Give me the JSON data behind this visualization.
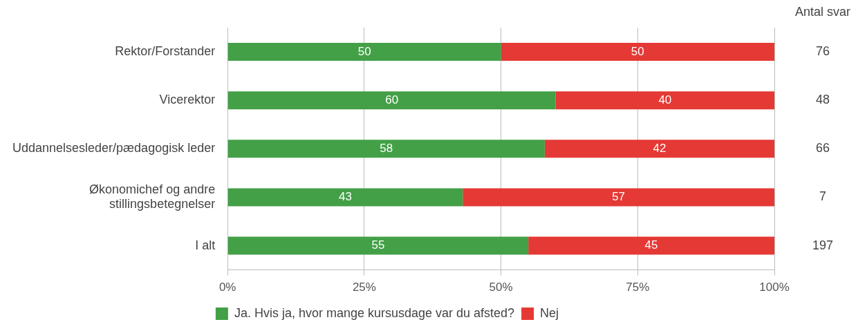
{
  "chart_data": {
    "type": "bar",
    "orientation": "horizontal",
    "stacked": true,
    "categories": [
      "Rektor/Forstander",
      "Vicerektor",
      "Uddannelsesleder/pædagogisk leder",
      "Økonomichef og andre\nstillingsbetegnelser",
      "I alt"
    ],
    "series": [
      {
        "name": "Ja. Hvis ja, hvor mange kursusdage var du afsted?",
        "color": "#43a047",
        "values": [
          50,
          60,
          58,
          43,
          55
        ]
      },
      {
        "name": "Nej",
        "color": "#e53935",
        "values": [
          50,
          40,
          42,
          57,
          45
        ]
      }
    ],
    "xlim": [
      0,
      100
    ],
    "xticks": [
      {
        "value": 0,
        "label": "0%"
      },
      {
        "value": 25,
        "label": "25%"
      },
      {
        "value": 50,
        "label": "50%"
      },
      {
        "value": 75,
        "label": "75%"
      },
      {
        "value": 100,
        "label": "100%"
      }
    ],
    "grid": "x",
    "legend": "bottom",
    "data_labels": true,
    "annotations": [
      "Antal svar",
      "76",
      "48",
      "66",
      "7",
      "197"
    ]
  }
}
